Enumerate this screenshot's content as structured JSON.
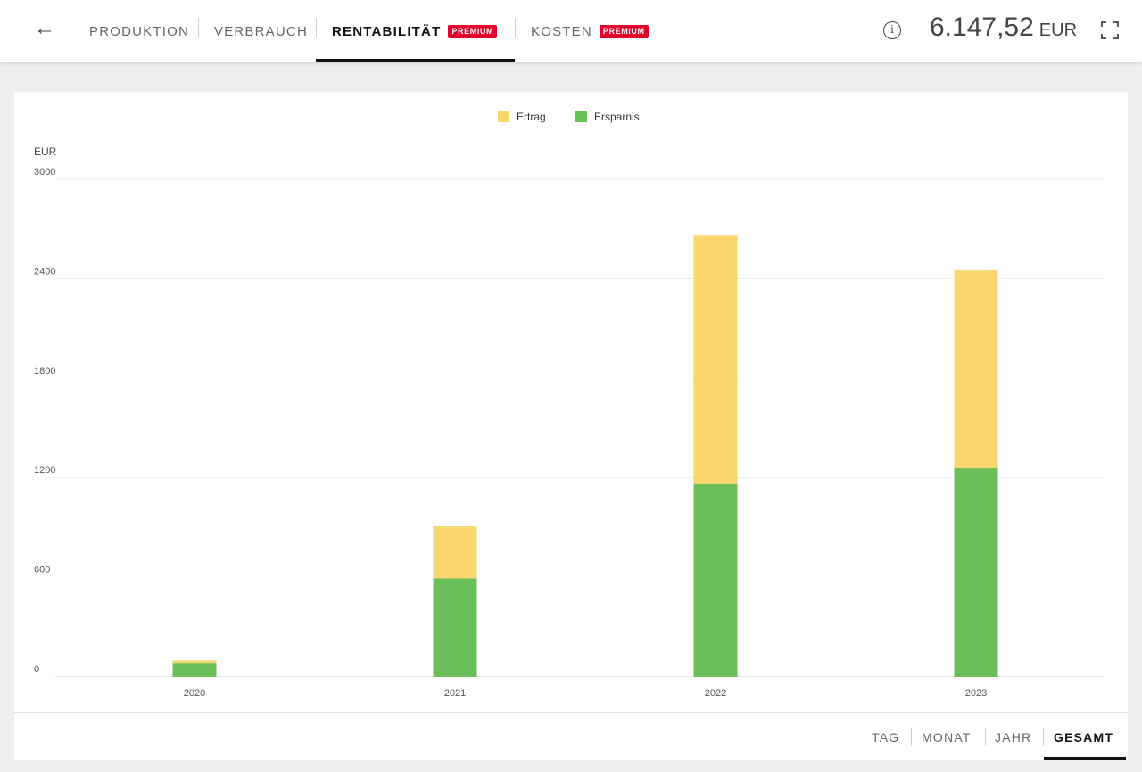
{
  "header": {
    "tabs": [
      {
        "label": "PRODUKTION",
        "badge": ""
      },
      {
        "label": "VERBRAUCH",
        "badge": ""
      },
      {
        "label": "RENTABILITÄT",
        "badge": "PREMIUM"
      },
      {
        "label": "KOSTEN",
        "badge": "PREMIUM"
      }
    ],
    "active_tab": "RENTABILITÄT",
    "total_amount": "6.147,52",
    "total_currency": "EUR",
    "info_glyph": "i"
  },
  "icons": {
    "back": "arrow-left-icon",
    "info": "info-circle-icon",
    "fullscreen": "fullscreen-icon"
  },
  "colors": {
    "ertrag": "#f7d76e",
    "ersparnis": "#6bbf59",
    "badge": "#e0002a",
    "active": "#111111"
  },
  "chart_data": {
    "type": "bar",
    "stacked": true,
    "categories": [
      "2020",
      "2021",
      "2022",
      "2023"
    ],
    "series": [
      {
        "name": "Ersparnis",
        "values": [
          80,
          590,
          1165,
          1260
        ]
      },
      {
        "name": "Ertrag",
        "values": [
          15,
          320,
          1500,
          1190
        ]
      }
    ],
    "ylabel": "EUR",
    "yticks": [
      0,
      600,
      1200,
      1800,
      2400,
      3000
    ],
    "ylim": [
      0,
      3000
    ],
    "grid": true,
    "legend_position": "top-center",
    "legend_order": [
      "Ertrag",
      "Ersparnis"
    ]
  },
  "footer": {
    "periods": [
      "TAG",
      "MONAT",
      "JAHR",
      "GESAMT"
    ],
    "active_period": "GESAMT"
  }
}
